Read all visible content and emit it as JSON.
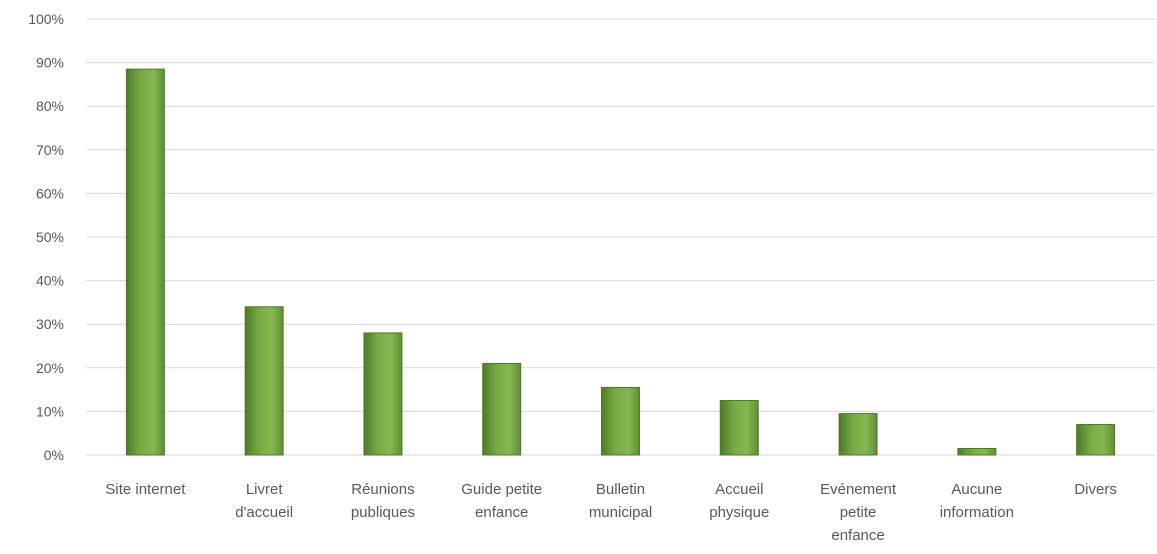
{
  "chart_data": {
    "type": "bar",
    "categories": [
      [
        "Site internet"
      ],
      [
        "Livret",
        "d'accueil"
      ],
      [
        "Réunions",
        "publiques"
      ],
      [
        "Guide petite",
        "enfance"
      ],
      [
        "Bulletin",
        "municipal"
      ],
      [
        "Accueil",
        "physique"
      ],
      [
        "Evénement",
        "petite",
        "enfance"
      ],
      [
        "Aucune",
        "information"
      ],
      [
        "Divers"
      ]
    ],
    "values": [
      88.5,
      34,
      28,
      21,
      15.5,
      12.5,
      9.5,
      1.5,
      7
    ],
    "ylim": [
      0,
      100
    ],
    "yticks": [
      "0%",
      "10%",
      "20%",
      "30%",
      "40%",
      "50%",
      "60%",
      "70%",
      "80%",
      "90%",
      "100%"
    ],
    "grid": true,
    "bar_color": "#70a040",
    "bar_edge_color": "#4e7a2a"
  }
}
